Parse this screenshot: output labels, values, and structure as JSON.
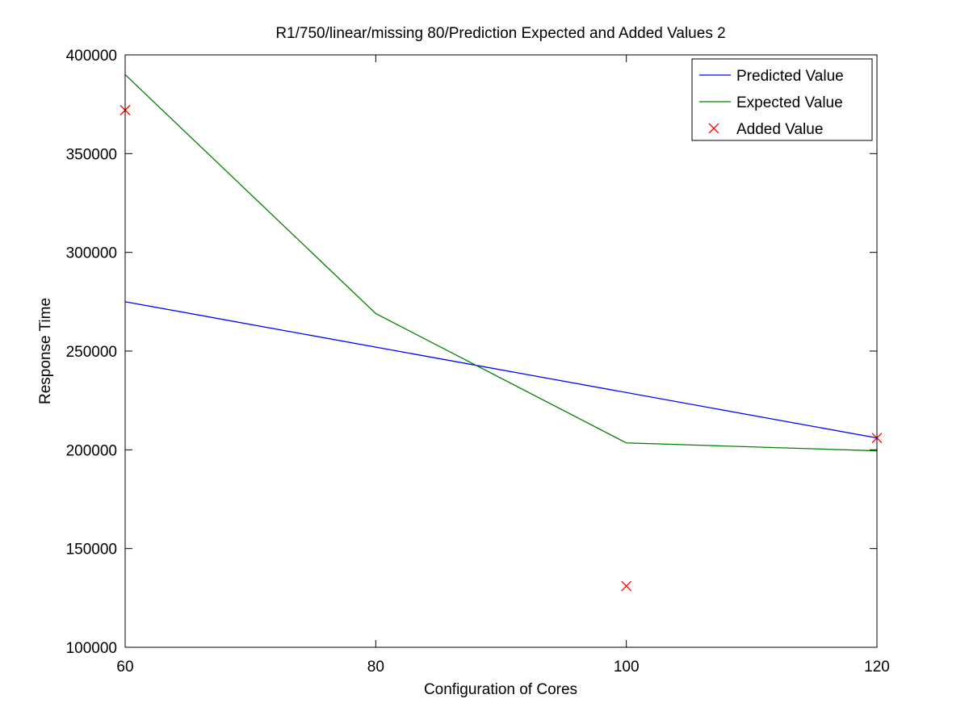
{
  "chart_data": {
    "type": "line",
    "title": "R1/750/linear/missing 80/Prediction Expected and Added Values 2",
    "xlabel": "Configuration of Cores",
    "ylabel": "Response Time",
    "xlim": [
      60,
      120
    ],
    "ylim": [
      100000,
      400000
    ],
    "xticks": [
      60,
      80,
      100,
      120
    ],
    "yticks": [
      100000,
      150000,
      200000,
      250000,
      300000,
      350000,
      400000
    ],
    "grid": false,
    "legend_position": "top-right",
    "series": [
      {
        "name": "Predicted Value",
        "kind": "line",
        "color": "#0000ff",
        "x": [
          60,
          120
        ],
        "y": [
          275000,
          206000
        ]
      },
      {
        "name": "Expected Value",
        "kind": "line",
        "color": "#008000",
        "x": [
          60,
          80,
          100,
          120
        ],
        "y": [
          390000,
          269000,
          203500,
          199500
        ]
      },
      {
        "name": "Added Value",
        "kind": "scatter",
        "marker": "x",
        "color": "#ff0000",
        "x": [
          60,
          100,
          120
        ],
        "y": [
          372000,
          131000,
          206000
        ]
      }
    ]
  }
}
